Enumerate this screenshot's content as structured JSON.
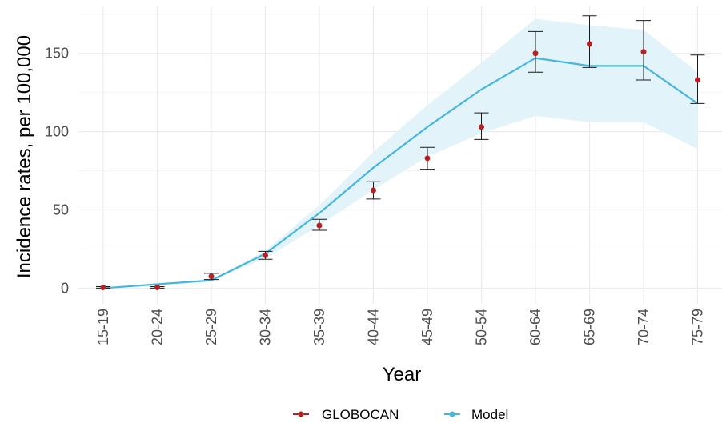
{
  "chart_data": {
    "type": "line",
    "xlabel": "Year",
    "ylabel": "Incidence rates, per 100,000",
    "categories": [
      "15-19",
      "20-24",
      "25-29",
      "30-34",
      "35-39",
      "40-44",
      "45-49",
      "50-54",
      "60-64",
      "65-69",
      "70-74",
      "75-79"
    ],
    "ylim": [
      -10,
      180
    ],
    "yticks": [
      0,
      50,
      100,
      150
    ],
    "ytick_labels": [
      "0",
      "50",
      "100",
      "150"
    ],
    "grid": true,
    "legend_position": "bottom",
    "series": [
      {
        "name": "GLOBOCAN",
        "type": "point_errorbar",
        "color": "#b22222",
        "values": [
          0.5,
          0.5,
          7.5,
          21,
          40,
          62.5,
          83,
          103,
          150,
          156,
          151,
          133
        ],
        "lower": [
          0,
          0,
          5.5,
          18.5,
          37,
          57,
          76,
          95,
          138,
          141,
          133,
          118
        ],
        "upper": [
          1,
          1,
          9.5,
          23.5,
          44,
          68,
          90,
          112,
          164,
          174,
          171,
          149
        ]
      },
      {
        "name": "Model",
        "type": "line_ribbon",
        "color": "#45b6dc",
        "ribbon_color": "#e3f3fa",
        "values": [
          0,
          2.5,
          5,
          22,
          48,
          77,
          103,
          127,
          147,
          142,
          142,
          118
        ],
        "lower": [
          0,
          2.5,
          5,
          19,
          40,
          63,
          84,
          99,
          110,
          106,
          106,
          89
        ],
        "upper": [
          0,
          2.5,
          5,
          24,
          53,
          87,
          117,
          144,
          172,
          168,
          165,
          138
        ]
      }
    ]
  }
}
